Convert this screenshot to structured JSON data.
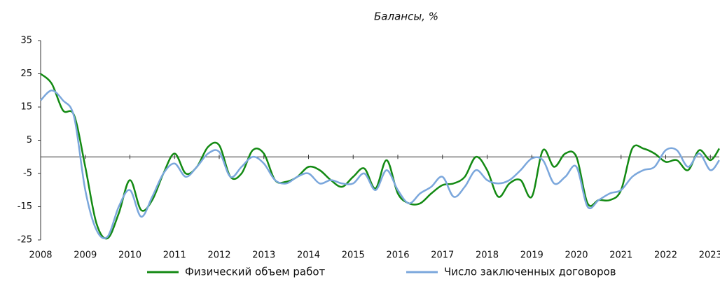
{
  "chart_data": {
    "type": "line",
    "subtitle": "Балансы, %",
    "x": [
      2008,
      2008.25,
      2008.5,
      2008.75,
      2009,
      2009.25,
      2009.5,
      2009.75,
      2010,
      2010.25,
      2010.5,
      2010.75,
      2011,
      2011.25,
      2011.5,
      2011.75,
      2012,
      2012.25,
      2012.5,
      2012.75,
      2013,
      2013.25,
      2013.5,
      2013.75,
      2014,
      2014.25,
      2014.5,
      2014.75,
      2015,
      2015.25,
      2015.5,
      2015.75,
      2016,
      2016.25,
      2016.5,
      2016.75,
      2017,
      2017.25,
      2017.5,
      2017.75,
      2018,
      2018.25,
      2018.5,
      2018.75,
      2019,
      2019.25,
      2019.5,
      2019.75,
      2020,
      2020.25,
      2020.5,
      2020.75,
      2021,
      2021.25,
      2021.5,
      2021.75,
      2022,
      2022.25,
      2022.5,
      2022.75,
      2023,
      2023.2
    ],
    "series": [
      {
        "name": "Физический объем работ",
        "color": "#138a13",
        "values": [
          25,
          22,
          14,
          12.5,
          -3,
          -20,
          -24.5,
          -17,
          -7,
          -16,
          -13,
          -5,
          1,
          -5,
          -3,
          3,
          3.5,
          -6,
          -5,
          2,
          1,
          -7,
          -7.5,
          -6,
          -3,
          -4,
          -7,
          -9,
          -6,
          -3.5,
          -9.5,
          -1,
          -11,
          -14,
          -14,
          -11,
          -8.5,
          -8,
          -6,
          0,
          -4,
          -12,
          -8,
          -7,
          -12,
          2,
          -3,
          1,
          0,
          -14,
          -13,
          -13,
          -10,
          2.5,
          2.5,
          1,
          -1.5,
          -1,
          -4,
          2,
          -1,
          2.5
        ]
      },
      {
        "name": "Число заключенных договоров",
        "color": "#7ba7dc",
        "values": [
          17,
          20,
          17,
          12,
          -10,
          -22,
          -24,
          -15,
          -10,
          -18,
          -12,
          -5,
          -2,
          -6,
          -3,
          1,
          1.5,
          -6,
          -3,
          0,
          -2,
          -7,
          -8,
          -6,
          -5,
          -8,
          -7,
          -8,
          -8,
          -5,
          -10,
          -4,
          -10,
          -14,
          -11,
          -9,
          -6,
          -12,
          -9,
          -4,
          -7,
          -8,
          -7,
          -4,
          -0.5,
          -1,
          -8,
          -6,
          -3,
          -15,
          -13,
          -11,
          -10,
          -6,
          -4,
          -3,
          2,
          2,
          -3,
          1,
          -4,
          -1
        ]
      }
    ],
    "xlim": [
      2008,
      2023.2
    ],
    "xticks": [
      2008,
      2009,
      2010,
      2011,
      2012,
      2013,
      2014,
      2015,
      2016,
      2017,
      2018,
      2019,
      2020,
      2021,
      2022,
      2023
    ],
    "ylim": [
      -25,
      35
    ],
    "yticks": [
      -25,
      -15,
      -5,
      5,
      15,
      25,
      35
    ]
  }
}
